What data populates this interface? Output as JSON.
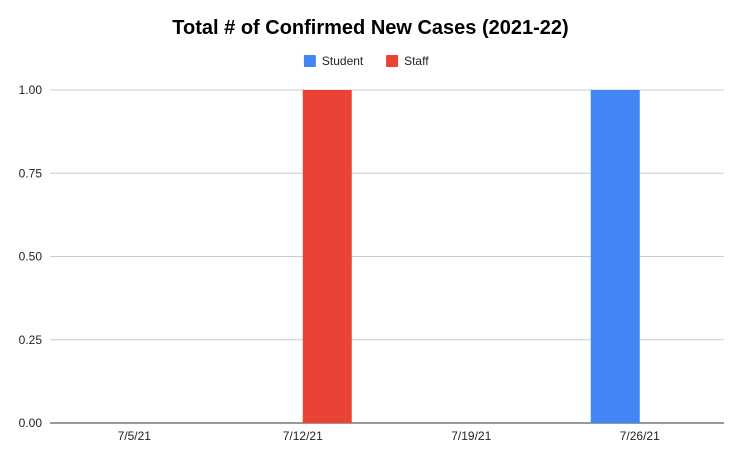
{
  "chart_data": {
    "type": "bar",
    "title": "Total # of Confirmed New Cases (2021-22)",
    "xlabel": "",
    "ylabel": "",
    "categories": [
      "7/5/21",
      "7/12/21",
      "7/19/21",
      "7/26/21"
    ],
    "series": [
      {
        "name": "Student",
        "color": "#4285f4",
        "values": [
          0,
          0,
          0,
          1
        ]
      },
      {
        "name": "Staff",
        "color": "#ea4335",
        "values": [
          0,
          1,
          0,
          0
        ]
      }
    ],
    "ylim": [
      0,
      1
    ],
    "yticks": [
      "0.00",
      "0.25",
      "0.50",
      "0.75",
      "1.00"
    ],
    "grid": true,
    "legend_position": "top"
  }
}
